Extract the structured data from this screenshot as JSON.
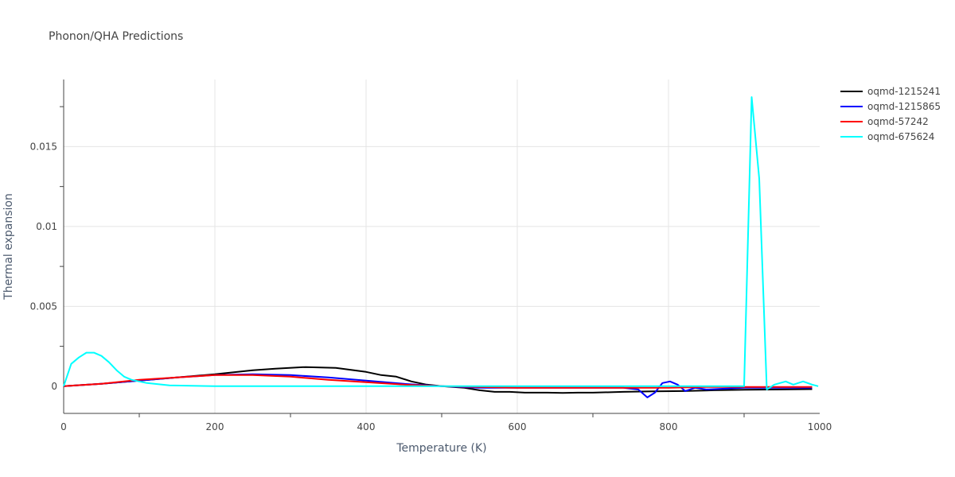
{
  "chart_data": {
    "type": "line",
    "title": "Phonon/QHA Predictions",
    "xlabel": "Temperature (K)",
    "ylabel": "Thermal expansion",
    "xlim": [
      0,
      1000
    ],
    "ylim": [
      -0.0017,
      0.0192
    ],
    "xticks": [
      0,
      200,
      400,
      600,
      800,
      1000
    ],
    "xtick_labels": [
      "0",
      "200",
      "400",
      "600",
      "800",
      "1000"
    ],
    "yticks": [
      0,
      0.005,
      0.01,
      0.015
    ],
    "ytick_labels": [
      "0",
      "0.005",
      "0.01",
      "0.015"
    ],
    "grid": true,
    "legend_position": "top-right",
    "series": [
      {
        "name": "oqmd-1215241",
        "color": "#000000",
        "points": [
          [
            0,
            0
          ],
          [
            50,
            0.00015
          ],
          [
            100,
            0.00035
          ],
          [
            150,
            0.00055
          ],
          [
            200,
            0.00075
          ],
          [
            250,
            0.001
          ],
          [
            280,
            0.0011
          ],
          [
            320,
            0.0012
          ],
          [
            360,
            0.00115
          ],
          [
            400,
            0.0009
          ],
          [
            420,
            0.0007
          ],
          [
            440,
            0.0006
          ],
          [
            460,
            0.0003
          ],
          [
            480,
            0.0001
          ],
          [
            500,
            0
          ],
          [
            530,
            -0.0001
          ],
          [
            550,
            -0.00025
          ],
          [
            570,
            -0.00035
          ],
          [
            590,
            -0.00035
          ],
          [
            610,
            -0.0004
          ],
          [
            640,
            -0.0004
          ],
          [
            660,
            -0.00042
          ],
          [
            680,
            -0.0004
          ],
          [
            700,
            -0.0004
          ],
          [
            740,
            -0.00035
          ],
          [
            780,
            -0.00032
          ],
          [
            820,
            -0.0003
          ],
          [
            860,
            -0.00025
          ],
          [
            900,
            -0.00022
          ],
          [
            950,
            -0.0002
          ],
          [
            990,
            -0.00018
          ]
        ]
      },
      {
        "name": "oqmd-1215865",
        "color": "#0000ff",
        "points": [
          [
            0,
            0
          ],
          [
            50,
            0.00015
          ],
          [
            100,
            0.00035
          ],
          [
            150,
            0.00055
          ],
          [
            200,
            0.0007
          ],
          [
            250,
            0.00075
          ],
          [
            300,
            0.0007
          ],
          [
            350,
            0.00055
          ],
          [
            400,
            0.00035
          ],
          [
            450,
            0.00015
          ],
          [
            500,
            0
          ],
          [
            550,
            -0.0001
          ],
          [
            600,
            -0.0001
          ],
          [
            650,
            -0.0001
          ],
          [
            700,
            -0.0001
          ],
          [
            740,
            -0.0001
          ],
          [
            760,
            -0.0002
          ],
          [
            772,
            -0.0007
          ],
          [
            782,
            -0.0004
          ],
          [
            792,
            0.0002
          ],
          [
            802,
            0.0003
          ],
          [
            812,
            0.0001
          ],
          [
            822,
            -0.0003
          ],
          [
            835,
            -0.0001
          ],
          [
            850,
            -0.0002
          ],
          [
            900,
            -0.0001
          ],
          [
            950,
            -0.0001
          ],
          [
            990,
            -0.0001
          ]
        ]
      },
      {
        "name": "oqmd-57242",
        "color": "#ff0000",
        "points": [
          [
            0,
            0
          ],
          [
            50,
            0.00015
          ],
          [
            100,
            0.0004
          ],
          [
            150,
            0.00055
          ],
          [
            200,
            0.0007
          ],
          [
            250,
            0.0007
          ],
          [
            300,
            0.0006
          ],
          [
            350,
            0.0004
          ],
          [
            400,
            0.00025
          ],
          [
            450,
            0.0001
          ],
          [
            500,
            0
          ],
          [
            550,
            -5e-05
          ],
          [
            600,
            -0.0001
          ],
          [
            700,
            -0.0001
          ],
          [
            750,
            -0.0001
          ],
          [
            800,
            -0.0001
          ],
          [
            850,
            -5e-05
          ],
          [
            900,
            -5e-05
          ],
          [
            950,
            -5e-05
          ],
          [
            990,
            -5e-05
          ]
        ]
      },
      {
        "name": "oqmd-675624",
        "color": "#00ffff",
        "points": [
          [
            0,
            0
          ],
          [
            10,
            0.0014
          ],
          [
            20,
            0.0018
          ],
          [
            30,
            0.0021
          ],
          [
            40,
            0.0021
          ],
          [
            50,
            0.0019
          ],
          [
            60,
            0.0015
          ],
          [
            70,
            0.001
          ],
          [
            80,
            0.0006
          ],
          [
            90,
            0.0004
          ],
          [
            110,
            0.0002
          ],
          [
            140,
            5e-05
          ],
          [
            200,
            0
          ],
          [
            300,
            0
          ],
          [
            400,
            0
          ],
          [
            500,
            0
          ],
          [
            600,
            0
          ],
          [
            700,
            0
          ],
          [
            800,
            0
          ],
          [
            860,
            0
          ],
          [
            900,
            0
          ],
          [
            910,
            0.0181
          ],
          [
            920,
            0.013
          ],
          [
            930,
            -0.0002
          ],
          [
            940,
            0.0001
          ],
          [
            955,
            0.0003
          ],
          [
            965,
            0.0001
          ],
          [
            978,
            0.0003
          ],
          [
            990,
            0.0001
          ],
          [
            998,
            0
          ]
        ]
      }
    ]
  }
}
